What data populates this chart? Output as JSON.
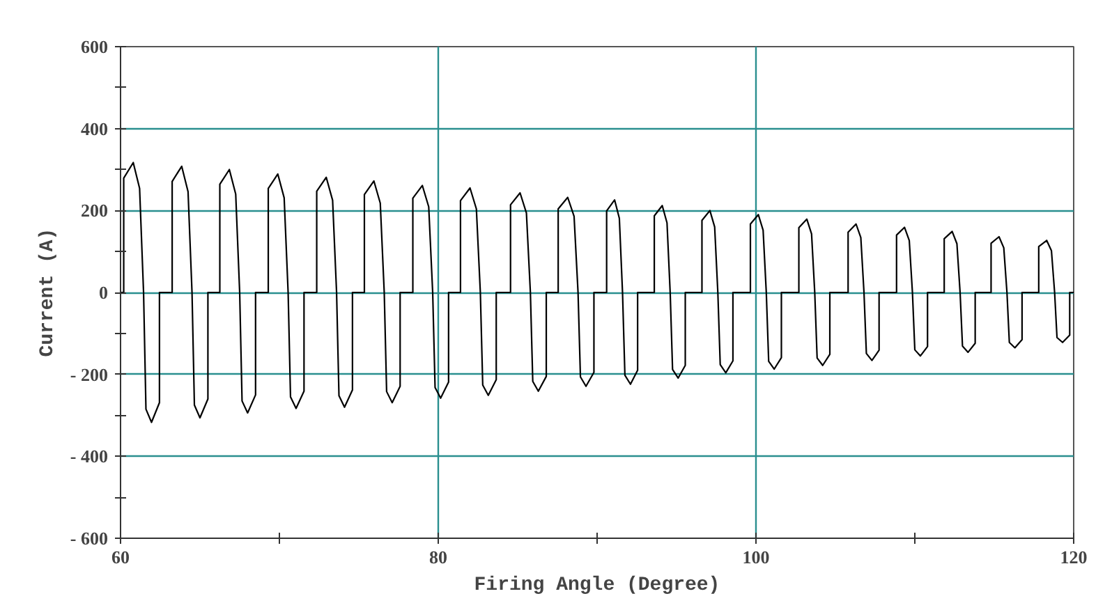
{
  "chart_data": {
    "type": "line",
    "xlabel": "Firing Angle (Degree)",
    "ylabel": "Current (A)",
    "color": "#000000",
    "line_style": "solid",
    "grid": true,
    "marker": "none",
    "xlim": [
      60,
      120
    ],
    "ylim": [
      -600,
      600
    ],
    "xticks": [
      60,
      {
        "value": 70,
        "label": null
      },
      80,
      {
        "value": 90,
        "label": null
      },
      100,
      {
        "value": 110,
        "label": null
      },
      120
    ],
    "yticks": [
      {
        "value": -600,
        "label": "- 600"
      },
      {
        "value": -500,
        "label": null
      },
      {
        "value": -400,
        "label": "- 400"
      },
      {
        "value": -300,
        "label": null
      },
      {
        "value": -200,
        "label": "- 200"
      },
      {
        "value": -100,
        "label": null
      },
      0,
      {
        "value": 100,
        "label": null
      },
      200,
      {
        "value": 300,
        "label": null
      },
      400,
      {
        "value": 500,
        "label": null
      },
      600
    ],
    "x": [
      60,
      60.2,
      60.2,
      60.8,
      61.2,
      61.45,
      61.6,
      61.95,
      62.45,
      62.45,
      63.25,
      63.25,
      63.85,
      64.25,
      64.5,
      64.65,
      65.0,
      65.5,
      65.5,
      66.25,
      66.25,
      66.85,
      67.25,
      67.5,
      67.65,
      68.0,
      68.5,
      68.5,
      69.3,
      69.3,
      69.9,
      70.3,
      70.55,
      70.7,
      71.05,
      71.55,
      71.55,
      72.35,
      72.35,
      72.95,
      73.35,
      73.6,
      73.75,
      74.1,
      74.6,
      74.6,
      75.35,
      75.35,
      75.95,
      76.35,
      76.6,
      76.75,
      77.1,
      77.6,
      77.6,
      78.4,
      78.4,
      79.0,
      79.4,
      79.65,
      79.8,
      80.15,
      80.65,
      80.65,
      81.4,
      81.4,
      82.0,
      82.4,
      82.65,
      82.8,
      83.15,
      83.65,
      83.65,
      84.55,
      84.55,
      85.15,
      85.55,
      85.8,
      85.95,
      86.3,
      86.8,
      86.8,
      87.55,
      87.55,
      88.15,
      88.55,
      88.8,
      88.95,
      89.3,
      89.8,
      89.8,
      90.6,
      90.6,
      91.1,
      91.4,
      91.6,
      91.75,
      92.1,
      92.55,
      92.55,
      93.6,
      93.6,
      94.1,
      94.4,
      94.6,
      94.75,
      95.1,
      95.55,
      95.55,
      96.6,
      96.6,
      97.1,
      97.4,
      97.6,
      97.75,
      98.1,
      98.55,
      98.55,
      99.65,
      99.65,
      100.15,
      100.45,
      100.65,
      100.8,
      101.15,
      101.6,
      101.6,
      102.7,
      102.7,
      103.2,
      103.5,
      103.7,
      103.85,
      104.2,
      104.65,
      104.65,
      105.8,
      105.8,
      106.3,
      106.6,
      106.8,
      106.95,
      107.3,
      107.75,
      107.75,
      108.85,
      108.85,
      109.35,
      109.65,
      109.85,
      110.0,
      110.35,
      110.8,
      110.8,
      111.85,
      111.85,
      112.35,
      112.65,
      112.85,
      113.0,
      113.35,
      113.8,
      113.8,
      114.8,
      114.8,
      115.3,
      115.6,
      115.8,
      115.95,
      116.3,
      116.75,
      116.75,
      117.8,
      117.8,
      118.3,
      118.6,
      118.8,
      118.95,
      119.3,
      119.75,
      119.75,
      120
    ],
    "values": [
      0,
      0,
      279,
      317,
      254,
      0,
      -285,
      -317,
      -269,
      0,
      0,
      271,
      308,
      246,
      0,
      -275,
      -306,
      -260,
      0,
      0,
      264,
      300,
      240,
      0,
      -265,
      -294,
      -250,
      0,
      0,
      254,
      289,
      231,
      0,
      -255,
      -283,
      -241,
      0,
      0,
      247,
      281,
      225,
      0,
      -252,
      -280,
      -238,
      0,
      0,
      239,
      272,
      218,
      0,
      -242,
      -269,
      -229,
      0,
      0,
      230,
      261,
      209,
      0,
      -232,
      -258,
      -219,
      0,
      0,
      224,
      255,
      204,
      0,
      -226,
      -251,
      -213,
      0,
      0,
      214,
      243,
      194,
      0,
      -217,
      -241,
      -205,
      0,
      0,
      204,
      232,
      186,
      0,
      -206,
      -229,
      -195,
      0,
      0,
      199,
      226,
      181,
      0,
      -202,
      -224,
      -190,
      0,
      0,
      187,
      212,
      170,
      0,
      -188,
      -209,
      -178,
      0,
      0,
      176,
      200,
      160,
      0,
      -176,
      -196,
      -167,
      0,
      0,
      167,
      190,
      152,
      0,
      -168,
      -187,
      -159,
      0,
      0,
      158,
      179,
      143,
      0,
      -160,
      -178,
      -151,
      0,
      0,
      147,
      167,
      134,
      0,
      -149,
      -166,
      -141,
      0,
      0,
      140,
      159,
      127,
      0,
      -140,
      -155,
      -132,
      0,
      0,
      131,
      149,
      119,
      0,
      -131,
      -146,
      -124,
      0,
      0,
      120,
      136,
      109,
      0,
      -122,
      -135,
      -115,
      0,
      0,
      112,
      127,
      102,
      0,
      -110,
      -122,
      -104,
      0,
      0
    ]
  }
}
